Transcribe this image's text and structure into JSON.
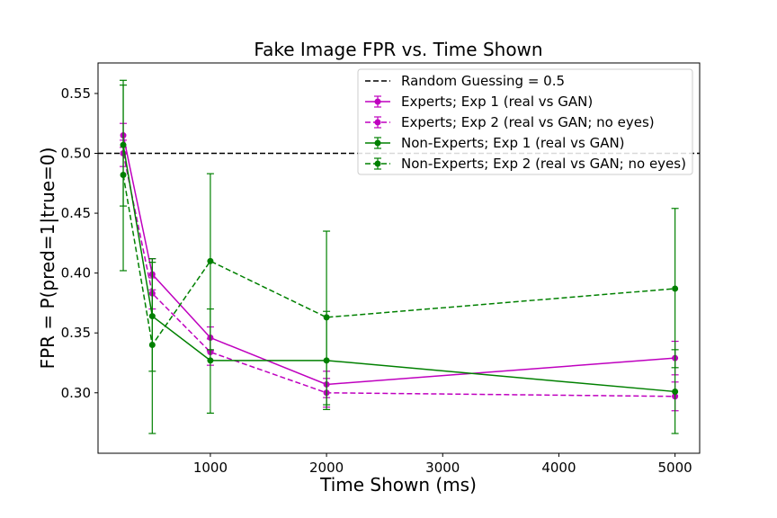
{
  "chart_data": {
    "type": "line",
    "title": "Fake Image FPR vs. Time Shown",
    "xlabel": "Time Shown (ms)",
    "ylabel": "FPR = P(pred=1|true=0)",
    "xlim": [
      33,
      5212
    ],
    "ylim": [
      0.2495,
      0.5755
    ],
    "xticks": [
      1000,
      2000,
      3000,
      4000,
      5000
    ],
    "xtick_labels": [
      "1000",
      "2000",
      "3000",
      "4000",
      "5000"
    ],
    "yticks": [
      0.3,
      0.35,
      0.4,
      0.45,
      0.5,
      0.55
    ],
    "ytick_labels": [
      "0.30",
      "0.35",
      "0.40",
      "0.45",
      "0.50",
      "0.55"
    ],
    "grid": false,
    "legend_position": "top-right",
    "reference_line": {
      "label": "Random Guessing = 0.5",
      "y": 0.5,
      "color": "#000000",
      "dash": "dashed"
    },
    "x": [
      250,
      500,
      1000,
      2000,
      5000
    ],
    "series": [
      {
        "name": "Experts; Exp 1 (real vs GAN)",
        "color": "#bf00bf",
        "dash": "solid",
        "values": [
          0.515,
          0.399,
          0.346,
          0.307,
          0.329
        ],
        "err_low": [
          0.505,
          0.386,
          0.335,
          0.296,
          0.315
        ],
        "err_high": [
          0.525,
          0.412,
          0.355,
          0.318,
          0.343
        ]
      },
      {
        "name": "Experts; Exp 2 (real vs GAN; no eyes)",
        "color": "#bf00bf",
        "dash": "dashed",
        "values": [
          0.5,
          0.383,
          0.334,
          0.3,
          0.297
        ],
        "err_low": [
          0.489,
          0.37,
          0.323,
          0.288,
          0.285
        ],
        "err_high": [
          0.511,
          0.396,
          0.345,
          0.312,
          0.309
        ]
      },
      {
        "name": "Non-Experts; Exp 1 (real vs GAN)",
        "color": "#008000",
        "dash": "solid",
        "values": [
          0.507,
          0.364,
          0.327,
          0.327,
          0.301
        ],
        "err_low": [
          0.456,
          0.318,
          0.283,
          0.286,
          0.266
        ],
        "err_high": [
          0.557,
          0.409,
          0.37,
          0.368,
          0.336
        ]
      },
      {
        "name": "Non-Experts; Exp 2 (real vs GAN; no eyes)",
        "color": "#008000",
        "dash": "dashed",
        "values": [
          0.482,
          0.34,
          0.41,
          0.363,
          0.387
        ],
        "err_low": [
          0.402,
          0.266,
          0.336,
          0.29,
          0.321
        ],
        "err_high": [
          0.561,
          0.412,
          0.483,
          0.435,
          0.454
        ]
      }
    ]
  }
}
